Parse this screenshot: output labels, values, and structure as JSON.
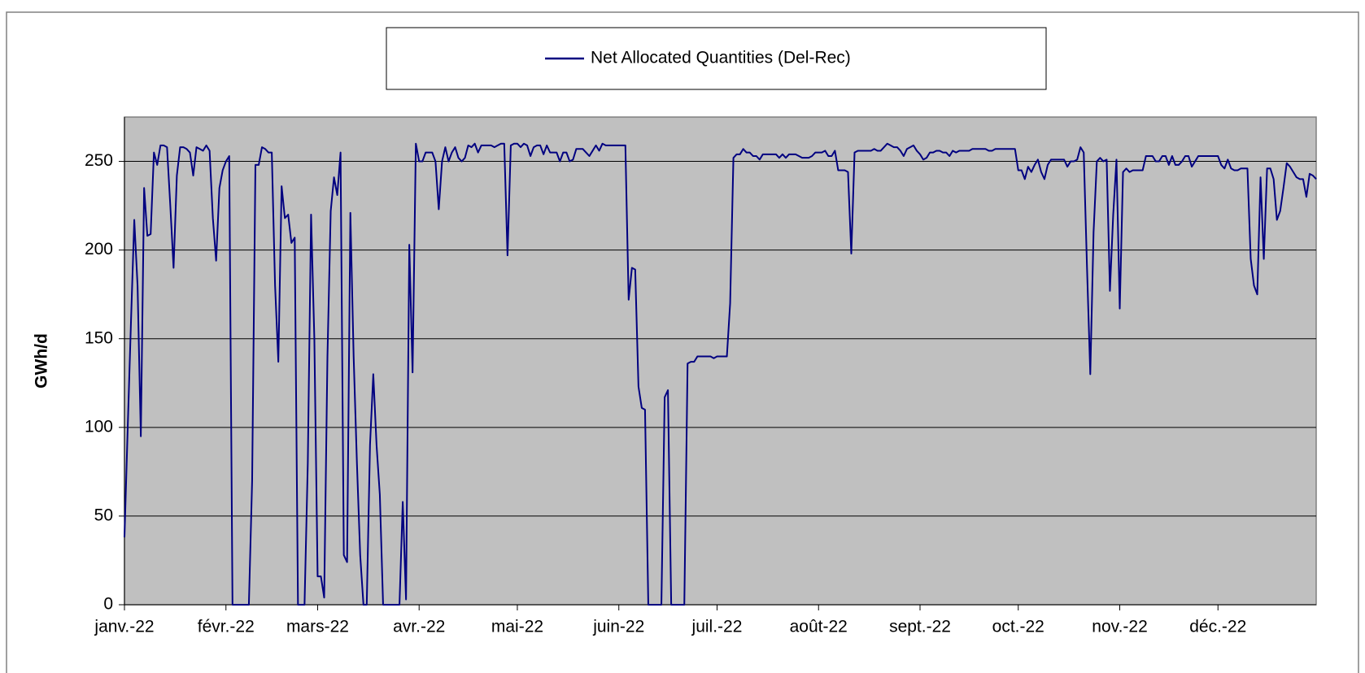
{
  "chart_data": {
    "type": "line",
    "y_label": "GWh/d",
    "categories": [
      "janv.-22",
      null,
      null,
      null,
      null,
      null,
      null,
      null,
      null,
      null,
      null,
      null,
      null,
      null,
      null,
      null,
      null,
      null,
      null,
      null,
      null,
      null,
      null,
      null,
      null,
      null,
      null,
      null,
      null,
      null,
      null,
      "févr.-22",
      null,
      null,
      null,
      null,
      null,
      null,
      null,
      null,
      null,
      null,
      null,
      null,
      null,
      null,
      null,
      null,
      null,
      null,
      null,
      null,
      null,
      null,
      null,
      null,
      null,
      null,
      null,
      "mars-22",
      null,
      null,
      null,
      null,
      null,
      null,
      null,
      null,
      null,
      null,
      null,
      null,
      null,
      null,
      null,
      null,
      null,
      null,
      null,
      null,
      null,
      null,
      null,
      null,
      null,
      null,
      null,
      null,
      null,
      null,
      "avr.-22",
      null,
      null,
      null,
      null,
      null,
      null,
      null,
      null,
      null,
      null,
      null,
      null,
      null,
      null,
      null,
      null,
      null,
      null,
      null,
      null,
      null,
      null,
      null,
      null,
      null,
      null,
      null,
      null,
      null,
      "mai-22",
      null,
      null,
      null,
      null,
      null,
      null,
      null,
      null,
      null,
      null,
      null,
      null,
      null,
      null,
      null,
      null,
      null,
      null,
      null,
      null,
      null,
      null,
      null,
      null,
      null,
      null,
      null,
      null,
      null,
      null,
      "juin-22",
      null,
      null,
      null,
      null,
      null,
      null,
      null,
      null,
      null,
      null,
      null,
      null,
      null,
      null,
      null,
      null,
      null,
      null,
      null,
      null,
      null,
      null,
      null,
      null,
      null,
      null,
      null,
      null,
      null,
      "juil.-22",
      null,
      null,
      null,
      null,
      null,
      null,
      null,
      null,
      null,
      null,
      null,
      null,
      null,
      null,
      null,
      null,
      null,
      null,
      null,
      null,
      null,
      null,
      null,
      null,
      null,
      null,
      null,
      null,
      null,
      null,
      "août-22",
      null,
      null,
      null,
      null,
      null,
      null,
      null,
      null,
      null,
      null,
      null,
      null,
      null,
      null,
      null,
      null,
      null,
      null,
      null,
      null,
      null,
      null,
      null,
      null,
      null,
      null,
      null,
      null,
      null,
      null,
      "sept.-22",
      null,
      null,
      null,
      null,
      null,
      null,
      null,
      null,
      null,
      null,
      null,
      null,
      null,
      null,
      null,
      null,
      null,
      null,
      null,
      null,
      null,
      null,
      null,
      null,
      null,
      null,
      null,
      null,
      null,
      "oct.-22",
      null,
      null,
      null,
      null,
      null,
      null,
      null,
      null,
      null,
      null,
      null,
      null,
      null,
      null,
      null,
      null,
      null,
      null,
      null,
      null,
      null,
      null,
      null,
      null,
      null,
      null,
      null,
      null,
      null,
      null,
      "nov.-22",
      null,
      null,
      null,
      null,
      null,
      null,
      null,
      null,
      null,
      null,
      null,
      null,
      null,
      null,
      null,
      null,
      null,
      null,
      null,
      null,
      null,
      null,
      null,
      null,
      null,
      null,
      null,
      null,
      null,
      "déc.-22",
      null,
      null,
      null,
      null,
      null,
      null,
      null,
      null,
      null,
      null,
      null,
      null,
      null,
      null,
      null,
      null,
      null,
      null,
      null,
      null,
      null,
      null,
      null,
      null,
      null,
      null,
      null,
      null,
      null,
      null
    ],
    "series": [
      {
        "name": "Net Allocated Quantities (Del-Rec)",
        "color": "#000080",
        "values": [
          38,
          100,
          160,
          217,
          180,
          95,
          235,
          208,
          209,
          255,
          248,
          259,
          259,
          258,
          225,
          190,
          242,
          258,
          258,
          257,
          255,
          242,
          258,
          257,
          256,
          259,
          256,
          218,
          194,
          235,
          245,
          250,
          253,
          0,
          0,
          0,
          0,
          0,
          0,
          70,
          248,
          248,
          258,
          257,
          255,
          255,
          180,
          137,
          236,
          218,
          220,
          204,
          207,
          0,
          0,
          0,
          80,
          220,
          150,
          16,
          16,
          4,
          140,
          222,
          241,
          231,
          255,
          28,
          24,
          221,
          140,
          80,
          28,
          0,
          0,
          90,
          130,
          90,
          62,
          0,
          0,
          0,
          0,
          0,
          0,
          58,
          3,
          203,
          131,
          260,
          250,
          250,
          255,
          255,
          255,
          250,
          223,
          250,
          258,
          250,
          255,
          258,
          252,
          250,
          252,
          259,
          258,
          260,
          255,
          259,
          259,
          259,
          259,
          258,
          259,
          260,
          260,
          197,
          259,
          260,
          260,
          258,
          260,
          259,
          253,
          258,
          259,
          259,
          254,
          259,
          255,
          255,
          255,
          250,
          255,
          255,
          250,
          251,
          257,
          257,
          257,
          255,
          253,
          256,
          259,
          256,
          260,
          259,
          259,
          259,
          259,
          259,
          259,
          259,
          172,
          190,
          189,
          123,
          111,
          110,
          0,
          0,
          0,
          0,
          0,
          117,
          121,
          0,
          0,
          0,
          0,
          0,
          136,
          137,
          137,
          140,
          140,
          140,
          140,
          140,
          139,
          140,
          140,
          140,
          140,
          170,
          252,
          254,
          254,
          257,
          255,
          255,
          253,
          253,
          251,
          254,
          254,
          254,
          254,
          254,
          252,
          254,
          252,
          254,
          254,
          254,
          253,
          252,
          252,
          252,
          253,
          255,
          255,
          255,
          256,
          253,
          253,
          256,
          245,
          245,
          245,
          244,
          198,
          255,
          256,
          256,
          256,
          256,
          256,
          257,
          256,
          256,
          258,
          260,
          259,
          258,
          258,
          256,
          253,
          257,
          258,
          259,
          256,
          254,
          251,
          252,
          255,
          255,
          256,
          256,
          255,
          255,
          253,
          256,
          255,
          256,
          256,
          256,
          256,
          257,
          257,
          257,
          257,
          257,
          256,
          256,
          257,
          257,
          257,
          257,
          257,
          257,
          257,
          245,
          245,
          240,
          247,
          244,
          248,
          251,
          244,
          240,
          248,
          251,
          251,
          251,
          251,
          251,
          247,
          250,
          250,
          251,
          258,
          255,
          190,
          130,
          210,
          250,
          252,
          250,
          251,
          177,
          220,
          251,
          167,
          244,
          246,
          244,
          245,
          245,
          245,
          245,
          253,
          253,
          253,
          250,
          250,
          253,
          253,
          248,
          253,
          248,
          248,
          250,
          253,
          253,
          247,
          250,
          253,
          253,
          253,
          253,
          253,
          253,
          253,
          248,
          246,
          251,
          246,
          245,
          245,
          246,
          246,
          246,
          195,
          180,
          175,
          241,
          195,
          246,
          246,
          240,
          217,
          222,
          235,
          249,
          247,
          244,
          241,
          240,
          240,
          230,
          243,
          242,
          240
        ]
      }
    ],
    "ylim": [
      0,
      275
    ],
    "yticks": [
      0,
      50,
      100,
      150,
      200,
      250
    ],
    "grid": true,
    "legend": "top"
  }
}
